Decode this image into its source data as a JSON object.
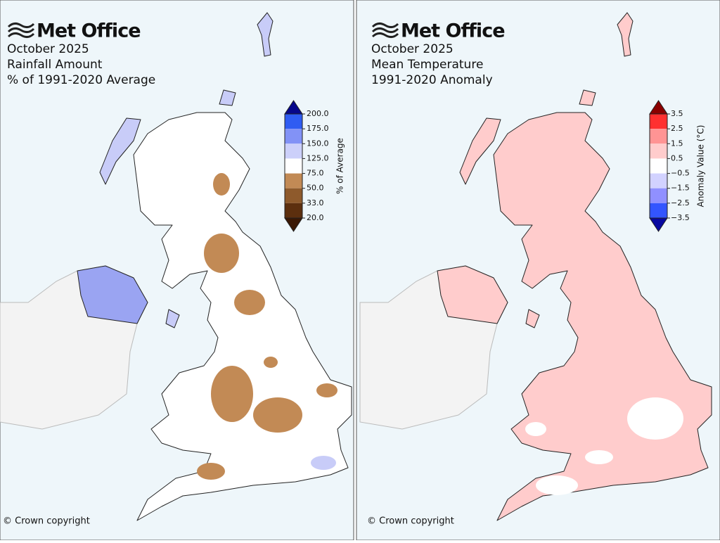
{
  "panels": [
    {
      "logo": "Met Office",
      "title_lines": [
        "October 2025",
        "Rainfall Amount",
        "% of 1991-2020 Average"
      ],
      "colorbar": {
        "label": "% of Average",
        "ticks": [
          {
            "value": 200,
            "label": "200.0"
          },
          {
            "value": 175,
            "label": "175.0"
          },
          {
            "value": 150,
            "label": "150.0"
          },
          {
            "value": 125,
            "label": "125.0"
          },
          {
            "value": 75,
            "label": "75.0"
          },
          {
            "value": 50,
            "label": "50.0"
          },
          {
            "value": 33,
            "label": "33.0"
          },
          {
            "value": 20,
            "label": "20.0"
          }
        ],
        "colors": [
          "#2f5cf2",
          "#8292f6",
          "#ccd0fa",
          "#ffffff",
          "#c28a55",
          "#8e5a2c",
          "#5c2f0e"
        ],
        "extend_colors": [
          "#07078a",
          "#3a1804"
        ]
      },
      "copyright": "© Crown copyright"
    },
    {
      "logo": "Met Office",
      "title_lines": [
        "October 2025",
        "Mean Temperature",
        "1991-2020 Anomaly"
      ],
      "colorbar": {
        "label": "Anomaly Value (°C)",
        "ticks": [
          3.5,
          2.5,
          1.5,
          0.5,
          {
            "value": -0.5,
            "label": "−0.5"
          },
          {
            "value": -1.5,
            "label": "−1.5"
          },
          {
            "value": -2.5,
            "label": "−2.5"
          },
          {
            "value": -3.5,
            "label": "−3.5"
          }
        ],
        "colors": [
          "#ff3030",
          "#ff9494",
          "#ffcccc",
          "#ffffff",
          "#d2d2ff",
          "#9090ff",
          "#3355ff"
        ],
        "extend_colors": [
          "#8b0000",
          "#0808a0"
        ]
      },
      "copyright": "© Crown copyright"
    }
  ]
}
